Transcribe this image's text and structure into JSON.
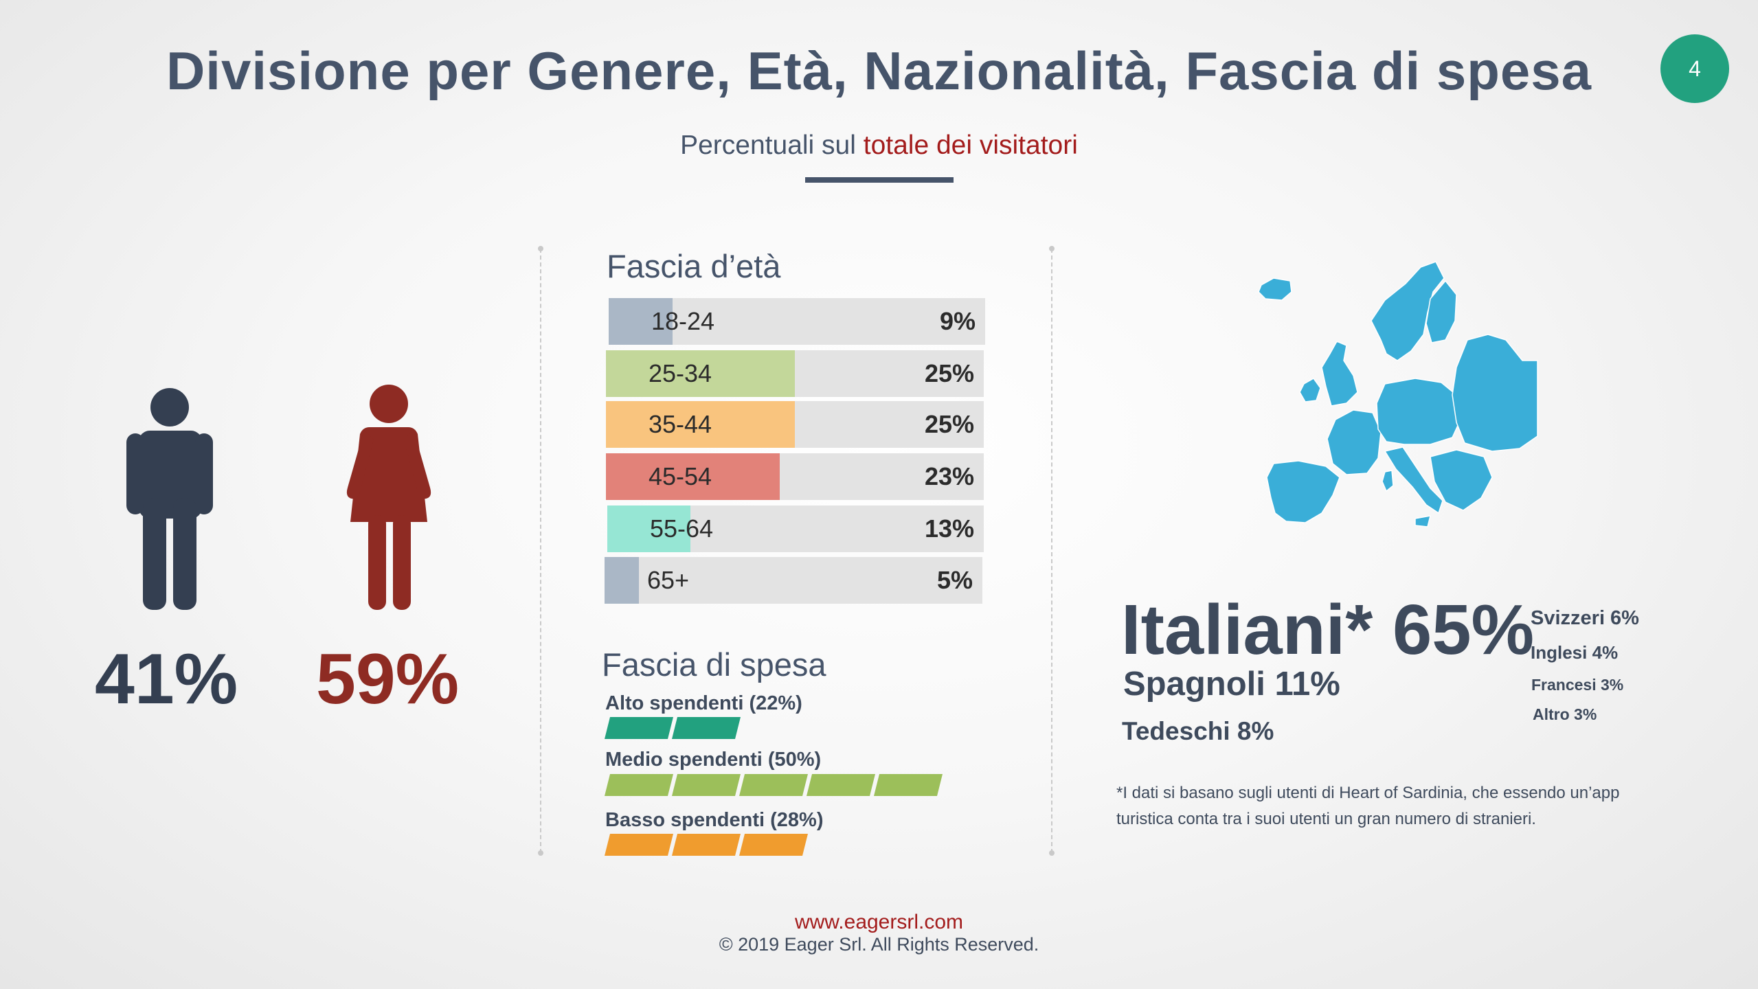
{
  "header": {
    "title": "Divisione per Genere, Età, Nazionalità, Fascia di spesa",
    "page_number": "4",
    "subtitle_prefix": "Percentuali sul ",
    "subtitle_highlight": "totale dei visitatori"
  },
  "gender": {
    "male_pct": "41%",
    "female_pct": "59%",
    "male_color": "#343f51",
    "female_color": "#8e2b23"
  },
  "age": {
    "title": "Fascia d’età",
    "rows": [
      {
        "label": "18-24",
        "value": "9%",
        "share": 0.17,
        "color": "#aab7c6"
      },
      {
        "label": "25-34",
        "value": "25%",
        "share": 0.5,
        "color": "#c3d79a"
      },
      {
        "label": "35-44",
        "value": "25%",
        "share": 0.5,
        "color": "#f9c47e"
      },
      {
        "label": "45-54",
        "value": "23%",
        "share": 0.46,
        "color": "#e28279"
      },
      {
        "label": "55-64",
        "value": "13%",
        "share": 0.22,
        "color": "#96e6d4"
      },
      {
        "label": "65+",
        "value": "5%",
        "share": 0.09,
        "color": "#aab7c6"
      }
    ]
  },
  "spending": {
    "title": "Fascia di spesa",
    "groups": [
      {
        "label": "Alto spendenti (22%)",
        "segments": 2,
        "color": "#22a17f"
      },
      {
        "label": "Medio spendenti (50%)",
        "segments": 5,
        "color": "#9cbf5a"
      },
      {
        "label": "Basso spendenti (28%)",
        "segments": 3,
        "color": "#f09c2e"
      }
    ]
  },
  "nationality": {
    "main": "Italiani* 65%",
    "second": "Spagnoli 11%",
    "third": "Tedeschi 8%",
    "others": [
      "Svizzeri 6%",
      "Inglesi 4%",
      "Francesi 3%",
      "Altro 3%"
    ],
    "map_color": "#3aaed8",
    "footnote": "*I dati si basano sugli utenti di Heart of Sardinia, che essendo un’app turistica conta tra i suoi utenti un gran numero di stranieri."
  },
  "footer": {
    "url": "www.eagersrl.com",
    "copyright": "© 2019 Eager Srl. All Rights Reserved."
  }
}
